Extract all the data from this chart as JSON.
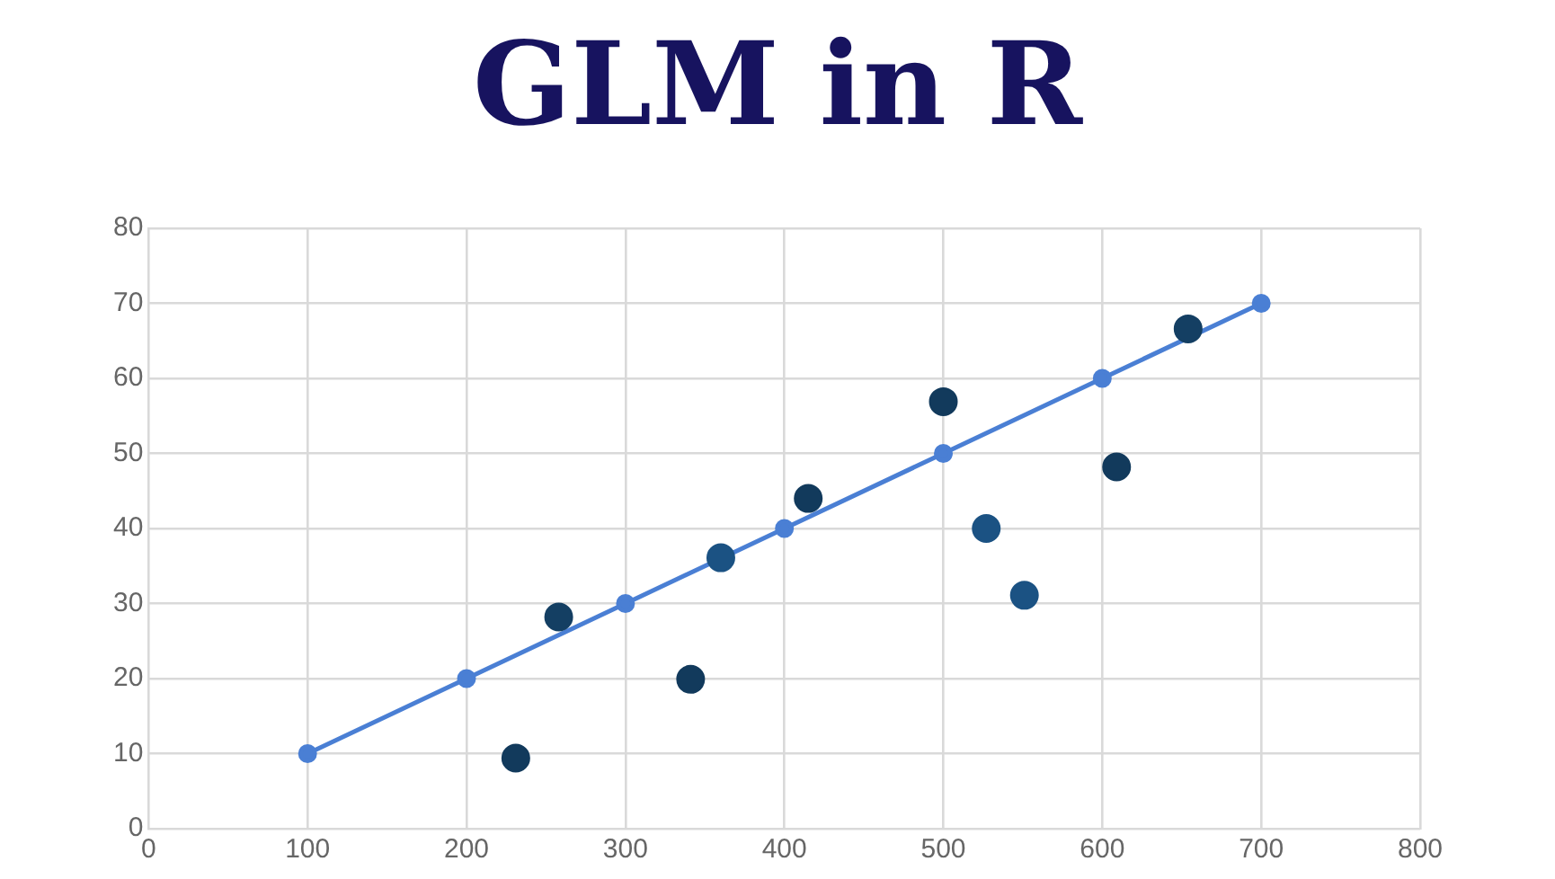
{
  "chart_data": {
    "type": "scatter",
    "title": "GLM in R",
    "series": [
      {
        "type": "line",
        "color": "#4a7fd4",
        "x": [
          100,
          200,
          300,
          400,
          500,
          600,
          700
        ],
        "values": [
          10,
          20,
          30,
          40,
          50,
          60,
          70
        ],
        "marker": "circle"
      },
      {
        "x": [
          231,
          258,
          341,
          360,
          415,
          500,
          527,
          551,
          609,
          654
        ],
        "values": [
          9.4,
          28.2,
          19.9,
          36.1,
          44,
          56.9,
          40,
          31.1,
          48.2,
          66.6
        ],
        "colors": [
          "#123a5c",
          "#143f63",
          "#123a5c",
          "#1b5283",
          "#123a5c",
          "#123a5c",
          "#1b5283",
          "#1b5283",
          "#123a5c",
          "#143f63"
        ]
      }
    ],
    "xlim": [
      0,
      800
    ],
    "xticks": [
      0,
      100,
      200,
      300,
      400,
      500,
      600,
      700,
      800
    ],
    "ylim": [
      0,
      80
    ],
    "yticks": [
      0,
      10,
      20,
      30,
      40,
      50,
      60,
      70,
      80
    ],
    "grid": true,
    "legend": false
  }
}
